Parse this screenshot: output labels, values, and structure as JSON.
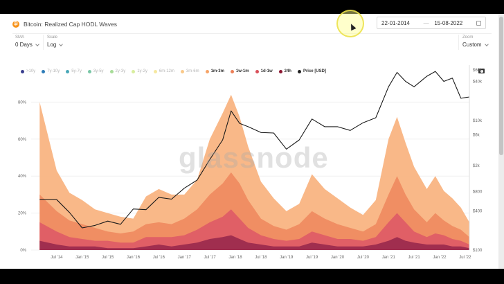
{
  "header": {
    "title": "Bitcoin: Realized Cap HODL Waves",
    "coin_icon": "bitcoin-icon",
    "date_from": "22-01-2014",
    "date_sep": "—",
    "date_to": "15-08-2022"
  },
  "controls": {
    "sma_label": "SMA",
    "sma_value": "0 Days",
    "scale_label": "Scale",
    "scale_value": "Log",
    "zoom_label": "Zoom",
    "zoom_value": "Custom"
  },
  "legend": [
    {
      "label": ">10y",
      "color": "#3a3f8f"
    },
    {
      "label": "7y-10y",
      "color": "#2e7cb8"
    },
    {
      "label": "5y-7y",
      "color": "#49a8b8"
    },
    {
      "label": "3y-5y",
      "color": "#79c6a6"
    },
    {
      "label": "2y-3y",
      "color": "#a7dc98"
    },
    {
      "label": "1y-2y",
      "color": "#d8ee9e"
    },
    {
      "label": "6m-12m",
      "color": "#f6e8a0"
    },
    {
      "label": "3m-6m",
      "color": "#fac98a"
    },
    {
      "label": "1m-3m",
      "color": "#f6a468"
    },
    {
      "label": "1w-1m",
      "color": "#ec7f57"
    },
    {
      "label": "1d-1w",
      "color": "#d9505a"
    },
    {
      "label": "24h",
      "color": "#8c1732"
    },
    {
      "label": "Price [USD]",
      "color": "#222222"
    }
  ],
  "watermark": "glassnode",
  "chart_data": {
    "type": "area",
    "title": "Bitcoin: Realized Cap HODL Waves",
    "stacked": true,
    "x_ticks": [
      "Jul '14",
      "Jan '15",
      "Jul '15",
      "Jan '16",
      "Jul '16",
      "Jan '17",
      "Jul '17",
      "Jan '18",
      "Jul '18",
      "Jan '19",
      "Jul '19",
      "Jan '20",
      "Jul '20",
      "Jan '21",
      "Jul '21",
      "Jan '22",
      "Jul '22"
    ],
    "y_left_ticks": [
      "0%",
      "20%",
      "40%",
      "60%",
      "80%"
    ],
    "y_left_range": [
      0,
      100
    ],
    "y_right_ticks": [
      "$100",
      "$400",
      "$800",
      "$2k",
      "$6k",
      "$10k",
      "$40k",
      "$60k"
    ],
    "y_right_scale": "log",
    "x": [
      "2014-03",
      "2014-07",
      "2014-10",
      "2015-01",
      "2015-04",
      "2015-07",
      "2015-10",
      "2016-01",
      "2016-04",
      "2016-07",
      "2016-10",
      "2017-01",
      "2017-04",
      "2017-07",
      "2017-10",
      "2017-12",
      "2018-02",
      "2018-04",
      "2018-07",
      "2018-10",
      "2019-01",
      "2019-04",
      "2019-07",
      "2019-10",
      "2020-01",
      "2020-04",
      "2020-07",
      "2020-10",
      "2021-01",
      "2021-03",
      "2021-05",
      "2021-07",
      "2021-10",
      "2021-12",
      "2022-02",
      "2022-04",
      "2022-06",
      "2022-08"
    ],
    "series": [
      {
        "name": "1m-3m",
        "values": [
          80,
          43,
          31,
          27,
          22,
          20,
          18,
          17,
          29,
          33,
          30,
          30,
          38,
          60,
          74,
          84,
          72,
          56,
          37,
          28,
          21,
          25,
          41,
          33,
          28,
          23,
          19,
          27,
          60,
          72,
          58,
          45,
          33,
          40,
          32,
          28,
          23,
          15
        ]
      },
      {
        "name": "1w-1m",
        "values": [
          30,
          21,
          16,
          14,
          12,
          10,
          9,
          10,
          14,
          15,
          14,
          17,
          22,
          30,
          36,
          42,
          36,
          27,
          17,
          13,
          11,
          14,
          21,
          17,
          14,
          12,
          10,
          14,
          30,
          40,
          30,
          22,
          15,
          20,
          16,
          13,
          11,
          7
        ]
      },
      {
        "name": "1d-1w",
        "values": [
          15,
          10,
          7,
          6,
          5,
          5,
          4,
          4,
          7,
          7,
          7,
          8,
          11,
          15,
          18,
          22,
          17,
          12,
          8,
          6,
          5,
          6,
          10,
          8,
          6,
          6,
          5,
          7,
          15,
          20,
          15,
          10,
          7,
          9,
          8,
          6,
          5,
          3
        ]
      },
      {
        "name": "24h",
        "values": [
          5,
          3,
          2,
          2,
          2,
          1,
          1,
          1,
          2,
          3,
          2,
          3,
          4,
          6,
          7,
          8,
          6,
          4,
          3,
          2,
          2,
          2,
          4,
          3,
          2,
          2,
          2,
          3,
          5,
          7,
          5,
          4,
          3,
          3,
          3,
          2,
          2,
          1
        ]
      },
      {
        "name": "Price [USD]",
        "values": [
          600,
          600,
          380,
          220,
          240,
          280,
          250,
          430,
          420,
          650,
          610,
          900,
          1200,
          2500,
          5000,
          14000,
          9000,
          8000,
          6500,
          6400,
          3600,
          5000,
          10500,
          8000,
          8000,
          7000,
          9200,
          11000,
          33000,
          55000,
          40000,
          33000,
          48000,
          57000,
          40000,
          45000,
          22000,
          23000
        ]
      }
    ]
  }
}
